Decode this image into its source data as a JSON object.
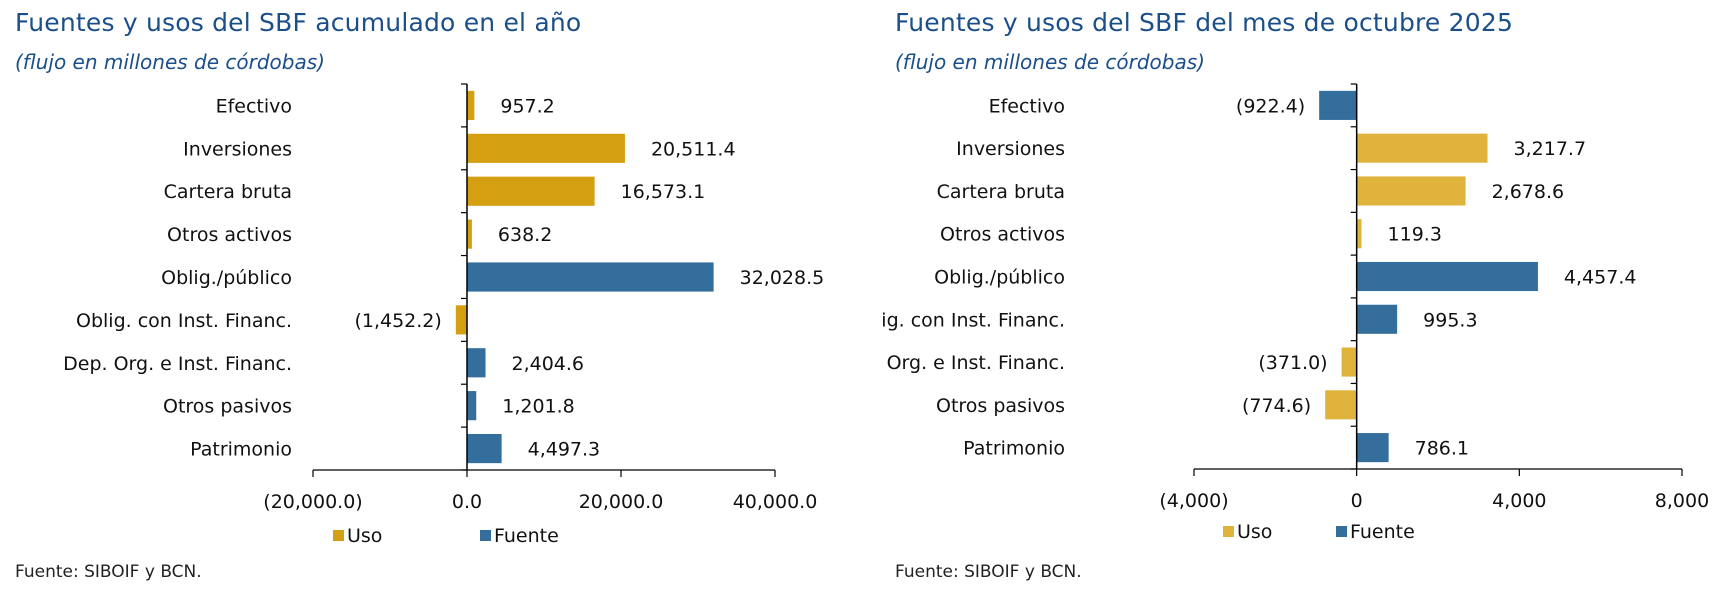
{
  "chart_data": [
    {
      "type": "bar",
      "orientation": "horizontal",
      "title": "Fuentes y usos del SBF acumulado en el año",
      "subtitle": "(flujo en millones de córdobas)",
      "source": "Fuente: SIBOIF y BCN.",
      "xlabel": "",
      "ylabel": "",
      "xlim": [
        -20000,
        40000
      ],
      "xticks": [
        -20000,
        0,
        20000,
        40000
      ],
      "xtick_labels": [
        "(20,000.0)",
        "0.0",
        "20,000.0",
        "40,000.0"
      ],
      "grid": false,
      "legend_position": "bottom",
      "legend": [
        {
          "name": "Uso",
          "color": "#D4A012"
        },
        {
          "name": "Fuente",
          "color": "#336E9C"
        }
      ],
      "categories": [
        "Efectivo",
        "Inversiones",
        "Cartera bruta",
        "Otros activos",
        "Oblig./público",
        "Oblig. con Inst. Financ.",
        "Dep. Org. e Inst. Financ.",
        "Otros pasivos",
        "Patrimonio"
      ],
      "values": [
        957.2,
        20511.4,
        16573.1,
        638.2,
        32028.5,
        -1452.2,
        2404.6,
        1201.8,
        4497.3
      ],
      "value_labels": [
        "957.2",
        "20,511.4",
        "16,573.1",
        "638.2",
        "32,028.5",
        "(1,452.2)",
        "2,404.6",
        "1,201.8",
        "4,497.3"
      ],
      "series_of_bar": [
        "Uso",
        "Uso",
        "Uso",
        "Uso",
        "Fuente",
        "Uso",
        "Fuente",
        "Fuente",
        "Fuente"
      ]
    },
    {
      "type": "bar",
      "orientation": "horizontal",
      "title": "Fuentes y usos del SBF del mes de octubre 2025",
      "subtitle": "(flujo en millones de córdobas)",
      "source": "Fuente: SIBOIF y BCN.",
      "xlabel": "",
      "ylabel": "",
      "xlim": [
        -4000,
        8000
      ],
      "xticks": [
        -4000,
        0,
        4000,
        8000
      ],
      "xtick_labels": [
        "(4,000)",
        "0",
        "4,000",
        "8,000"
      ],
      "grid": false,
      "legend_position": "bottom",
      "legend": [
        {
          "name": "Uso",
          "color": "#E0B43C"
        },
        {
          "name": "Fuente",
          "color": "#336E9C"
        }
      ],
      "categories": [
        "Efectivo",
        "Inversiones",
        "Cartera bruta",
        "Otros activos",
        "Oblig./público",
        "Oblig. con Inst. Financ.",
        "Dep. Org. e Inst. Financ.",
        "Otros pasivos",
        "Patrimonio"
      ],
      "values": [
        -922.4,
        3217.7,
        2678.6,
        119.3,
        4457.4,
        995.3,
        -371.0,
        -774.6,
        786.1
      ],
      "value_labels": [
        "(922.4)",
        "3,217.7",
        "2,678.6",
        "119.3",
        "4,457.4",
        "995.3",
        "(371.0)",
        "(774.6)",
        "786.1"
      ],
      "series_of_bar": [
        "Fuente",
        "Uso",
        "Uso",
        "Uso",
        "Fuente",
        "Fuente",
        "Uso",
        "Uso",
        "Fuente"
      ]
    }
  ]
}
